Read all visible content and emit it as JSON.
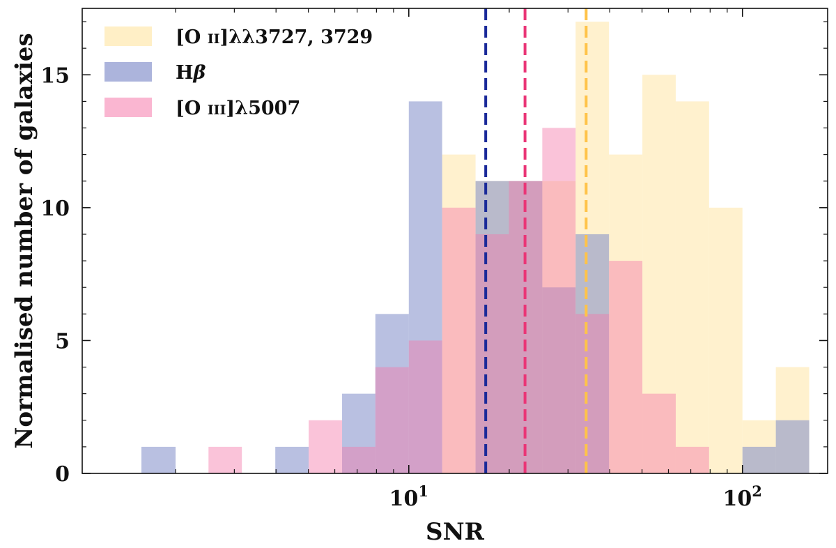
{
  "chart_data": {
    "type": "bar",
    "title": "",
    "xlabel": "SNR",
    "ylabel": "Normalised number of galaxies",
    "xscale": "log",
    "xlim": [
      1.05,
      180
    ],
    "ylim": [
      0,
      17.5
    ],
    "yticks": [
      0,
      5,
      10,
      15
    ],
    "xticks_major": [
      {
        "value": 10,
        "base": "10",
        "exp": "1"
      },
      {
        "value": 100,
        "base": "10",
        "exp": "2"
      }
    ],
    "grid": false,
    "legend_position": "top-left",
    "bin_edges": [
      1.58,
      2.0,
      2.51,
      3.16,
      3.98,
      5.01,
      6.31,
      7.94,
      10.0,
      12.59,
      15.85,
      19.95,
      25.12,
      31.62,
      39.81,
      50.12,
      63.1,
      79.43,
      100.0,
      125.89,
      158.49
    ],
    "series": [
      {
        "name_parts": [
          "[O ",
          "II",
          "]λλ3727, 3729"
        ],
        "color": "#ffe9b3",
        "opacity": 0.65,
        "values": [
          0,
          0,
          0,
          0,
          0,
          0,
          0,
          0,
          0,
          12,
          11,
          11,
          11,
          17,
          12,
          15,
          14,
          10,
          2,
          4
        ]
      },
      {
        "name_parts": [
          "H",
          "β",
          ""
        ],
        "color": "#7f8cc9",
        "opacity": 0.55,
        "values": [
          1,
          0,
          0,
          0,
          1,
          0,
          3,
          6,
          14,
          0,
          11,
          11,
          7,
          9,
          0,
          0,
          0,
          0,
          1,
          2
        ]
      },
      {
        "name_parts": [
          "[O ",
          "III",
          "]λ5007"
        ],
        "color": "#f57aab",
        "opacity": 0.45,
        "values": [
          0,
          0,
          1,
          0,
          0,
          2,
          1,
          4,
          5,
          10,
          9,
          11,
          13,
          6,
          8,
          3,
          1,
          0,
          0,
          0
        ]
      }
    ],
    "vlines": [
      {
        "x": 17.0,
        "color": "#1a2a99"
      },
      {
        "x": 22.3,
        "color": "#ea3576"
      },
      {
        "x": 34.0,
        "color": "#ffc34a"
      }
    ]
  }
}
